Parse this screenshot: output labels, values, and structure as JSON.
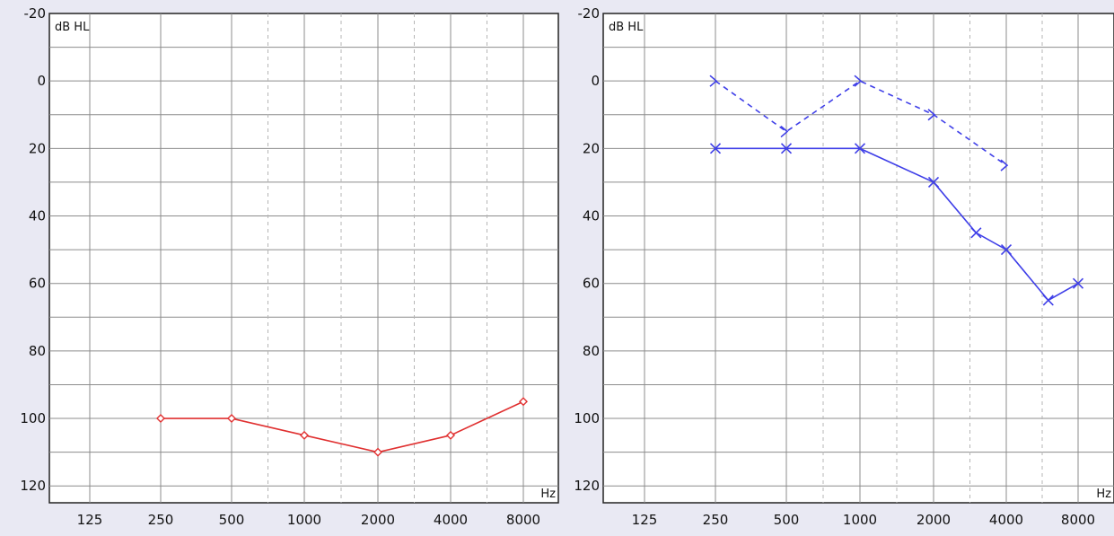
{
  "chart_data": [
    {
      "type": "line",
      "ylabel": "dB HL",
      "xlabel": "Hz",
      "x_categories": [
        "125",
        "250",
        "500",
        "1000",
        "2000",
        "4000",
        "8000"
      ],
      "y_ticks": [
        "-20",
        "0",
        "20",
        "40",
        "60",
        "80",
        "100",
        "120"
      ],
      "ylim": [
        -20,
        125
      ],
      "y_inverted": true,
      "grid": true,
      "series": [
        {
          "color": "#e03030",
          "marker": "diamond",
          "linestyle": "solid",
          "points": [
            {
              "freq": 250,
              "db": 100
            },
            {
              "freq": 500,
              "db": 100
            },
            {
              "freq": 1000,
              "db": 105
            },
            {
              "freq": 2000,
              "db": 110
            },
            {
              "freq": 4000,
              "db": 105
            },
            {
              "freq": 8000,
              "db": 95
            }
          ]
        }
      ]
    },
    {
      "type": "line",
      "ylabel": "dB HL",
      "xlabel": "Hz",
      "x_categories": [
        "125",
        "250",
        "500",
        "1000",
        "2000",
        "4000",
        "8000"
      ],
      "y_ticks": [
        "-20",
        "0",
        "20",
        "40",
        "60",
        "80",
        "100",
        "120"
      ],
      "ylim": [
        -20,
        125
      ],
      "y_inverted": true,
      "grid": true,
      "series": [
        {
          "color": "#3f3fe8",
          "marker": "x",
          "linestyle": "solid",
          "points": [
            {
              "freq": 250,
              "db": 20
            },
            {
              "freq": 500,
              "db": 20
            },
            {
              "freq": 1000,
              "db": 20
            },
            {
              "freq": 2000,
              "db": 30
            },
            {
              "freq": 3000,
              "db": 45
            },
            {
              "freq": 4000,
              "db": 50
            },
            {
              "freq": 6000,
              "db": 65
            },
            {
              "freq": 8000,
              "db": 60
            }
          ]
        },
        {
          "color": "#3f3fe8",
          "marker": "bone-conduction-right",
          "linestyle": "dashed",
          "points": [
            {
              "freq": 250,
              "db": 0
            },
            {
              "freq": 500,
              "db": 15
            },
            {
              "freq": 1000,
              "db": 0
            },
            {
              "freq": 2000,
              "db": 10
            },
            {
              "freq": 4000,
              "db": 25
            }
          ]
        }
      ]
    }
  ]
}
